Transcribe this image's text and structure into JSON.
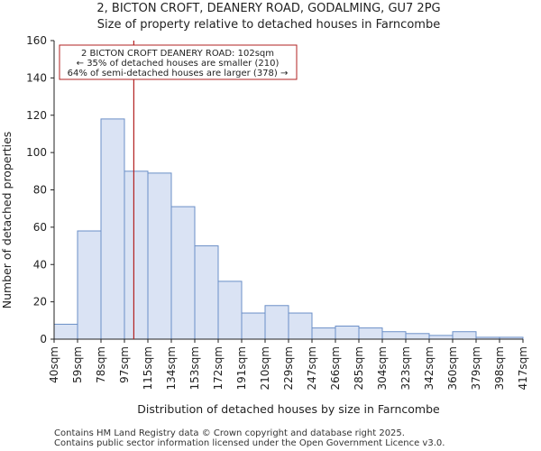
{
  "chart_data": {
    "type": "bar",
    "title_lines": [
      "2, BICTON CROFT, DEANERY ROAD, GODALMING, GU7 2PG",
      "Size of property relative to detached houses in Farncombe"
    ],
    "xlabel": "Distribution of detached houses by size in Farncombe",
    "ylabel": "Number of detached properties",
    "x_tick_labels": [
      "40sqm",
      "59sqm",
      "78sqm",
      "97sqm",
      "115sqm",
      "134sqm",
      "153sqm",
      "172sqm",
      "191sqm",
      "210sqm",
      "229sqm",
      "247sqm",
      "266sqm",
      "285sqm",
      "304sqm",
      "323sqm",
      "342sqm",
      "360sqm",
      "379sqm",
      "398sqm",
      "417sqm"
    ],
    "values": [
      8,
      58,
      118,
      90,
      89,
      71,
      50,
      31,
      14,
      18,
      14,
      6,
      7,
      6,
      4,
      3,
      2,
      4,
      1,
      1
    ],
    "ylim": [
      0,
      160
    ],
    "y_ticks": [
      0,
      20,
      40,
      60,
      80,
      100,
      120,
      140,
      160
    ],
    "grid": false,
    "marker": {
      "bin_position": 3.4,
      "annotation_lines": [
        "2 BICTON CROFT DEANERY ROAD: 102sqm",
        "← 35% of detached houses are smaller (210)",
        "64% of semi-detached houses are larger (378) →"
      ]
    },
    "colors": {
      "bar_fill": "#dae3f4",
      "bar_edge": "#6b8fc7",
      "marker": "#b22222",
      "axis": "#222222"
    }
  },
  "footer": {
    "lines": [
      "Contains HM Land Registry data © Crown copyright and database right 2025.",
      "Contains public sector information licensed under the Open Government Licence v3.0."
    ]
  }
}
